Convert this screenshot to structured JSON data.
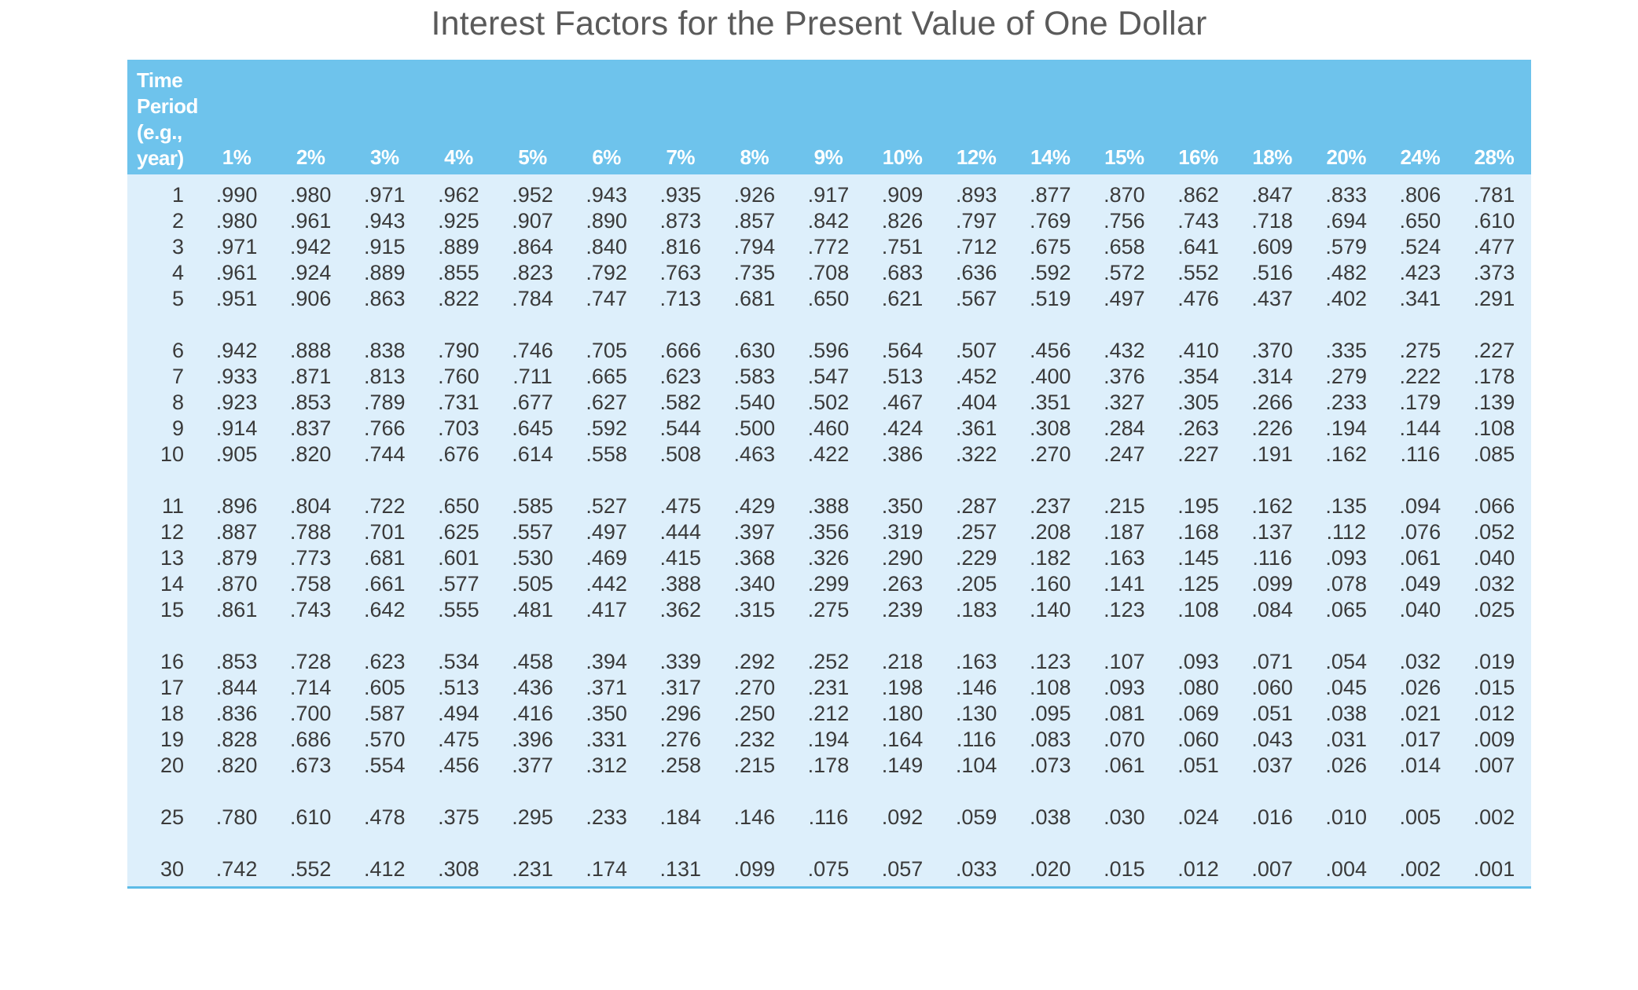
{
  "title": "Interest Factors for the Present Value of One Dollar",
  "table": {
    "period_header": [
      "Time",
      "Period",
      "(e.g.,",
      "year)"
    ],
    "rates": [
      "1%",
      "2%",
      "3%",
      "4%",
      "5%",
      "6%",
      "7%",
      "8%",
      "9%",
      "10%",
      "12%",
      "14%",
      "15%",
      "16%",
      "18%",
      "20%",
      "24%",
      "28%"
    ],
    "groups": [
      [
        {
          "period": "1",
          "values": [
            ".990",
            ".980",
            ".971",
            ".962",
            ".952",
            ".943",
            ".935",
            ".926",
            ".917",
            ".909",
            ".893",
            ".877",
            ".870",
            ".862",
            ".847",
            ".833",
            ".806",
            ".781"
          ]
        },
        {
          "period": "2",
          "values": [
            ".980",
            ".961",
            ".943",
            ".925",
            ".907",
            ".890",
            ".873",
            ".857",
            ".842",
            ".826",
            ".797",
            ".769",
            ".756",
            ".743",
            ".718",
            ".694",
            ".650",
            ".610"
          ]
        },
        {
          "period": "3",
          "values": [
            ".971",
            ".942",
            ".915",
            ".889",
            ".864",
            ".840",
            ".816",
            ".794",
            ".772",
            ".751",
            ".712",
            ".675",
            ".658",
            ".641",
            ".609",
            ".579",
            ".524",
            ".477"
          ]
        },
        {
          "period": "4",
          "values": [
            ".961",
            ".924",
            ".889",
            ".855",
            ".823",
            ".792",
            ".763",
            ".735",
            ".708",
            ".683",
            ".636",
            ".592",
            ".572",
            ".552",
            ".516",
            ".482",
            ".423",
            ".373"
          ]
        },
        {
          "period": "5",
          "values": [
            ".951",
            ".906",
            ".863",
            ".822",
            ".784",
            ".747",
            ".713",
            ".681",
            ".650",
            ".621",
            ".567",
            ".519",
            ".497",
            ".476",
            ".437",
            ".402",
            ".341",
            ".291"
          ]
        }
      ],
      [
        {
          "period": "6",
          "values": [
            ".942",
            ".888",
            ".838",
            ".790",
            ".746",
            ".705",
            ".666",
            ".630",
            ".596",
            ".564",
            ".507",
            ".456",
            ".432",
            ".410",
            ".370",
            ".335",
            ".275",
            ".227"
          ]
        },
        {
          "period": "7",
          "values": [
            ".933",
            ".871",
            ".813",
            ".760",
            ".711",
            ".665",
            ".623",
            ".583",
            ".547",
            ".513",
            ".452",
            ".400",
            ".376",
            ".354",
            ".314",
            ".279",
            ".222",
            ".178"
          ]
        },
        {
          "period": "8",
          "values": [
            ".923",
            ".853",
            ".789",
            ".731",
            ".677",
            ".627",
            ".582",
            ".540",
            ".502",
            ".467",
            ".404",
            ".351",
            ".327",
            ".305",
            ".266",
            ".233",
            ".179",
            ".139"
          ]
        },
        {
          "period": "9",
          "values": [
            ".914",
            ".837",
            ".766",
            ".703",
            ".645",
            ".592",
            ".544",
            ".500",
            ".460",
            ".424",
            ".361",
            ".308",
            ".284",
            ".263",
            ".226",
            ".194",
            ".144",
            ".108"
          ]
        },
        {
          "period": "10",
          "values": [
            ".905",
            ".820",
            ".744",
            ".676",
            ".614",
            ".558",
            ".508",
            ".463",
            ".422",
            ".386",
            ".322",
            ".270",
            ".247",
            ".227",
            ".191",
            ".162",
            ".116",
            ".085"
          ]
        }
      ],
      [
        {
          "period": "11",
          "values": [
            ".896",
            ".804",
            ".722",
            ".650",
            ".585",
            ".527",
            ".475",
            ".429",
            ".388",
            ".350",
            ".287",
            ".237",
            ".215",
            ".195",
            ".162",
            ".135",
            ".094",
            ".066"
          ]
        },
        {
          "period": "12",
          "values": [
            ".887",
            ".788",
            ".701",
            ".625",
            ".557",
            ".497",
            ".444",
            ".397",
            ".356",
            ".319",
            ".257",
            ".208",
            ".187",
            ".168",
            ".137",
            ".112",
            ".076",
            ".052"
          ]
        },
        {
          "period": "13",
          "values": [
            ".879",
            ".773",
            ".681",
            ".601",
            ".530",
            ".469",
            ".415",
            ".368",
            ".326",
            ".290",
            ".229",
            ".182",
            ".163",
            ".145",
            ".116",
            ".093",
            ".061",
            ".040"
          ]
        },
        {
          "period": "14",
          "values": [
            ".870",
            ".758",
            ".661",
            ".577",
            ".505",
            ".442",
            ".388",
            ".340",
            ".299",
            ".263",
            ".205",
            ".160",
            ".141",
            ".125",
            ".099",
            ".078",
            ".049",
            ".032"
          ]
        },
        {
          "period": "15",
          "values": [
            ".861",
            ".743",
            ".642",
            ".555",
            ".481",
            ".417",
            ".362",
            ".315",
            ".275",
            ".239",
            ".183",
            ".140",
            ".123",
            ".108",
            ".084",
            ".065",
            ".040",
            ".025"
          ]
        }
      ],
      [
        {
          "period": "16",
          "values": [
            ".853",
            ".728",
            ".623",
            ".534",
            ".458",
            ".394",
            ".339",
            ".292",
            ".252",
            ".218",
            ".163",
            ".123",
            ".107",
            ".093",
            ".071",
            ".054",
            ".032",
            ".019"
          ]
        },
        {
          "period": "17",
          "values": [
            ".844",
            ".714",
            ".605",
            ".513",
            ".436",
            ".371",
            ".317",
            ".270",
            ".231",
            ".198",
            ".146",
            ".108",
            ".093",
            ".080",
            ".060",
            ".045",
            ".026",
            ".015"
          ]
        },
        {
          "period": "18",
          "values": [
            ".836",
            ".700",
            ".587",
            ".494",
            ".416",
            ".350",
            ".296",
            ".250",
            ".212",
            ".180",
            ".130",
            ".095",
            ".081",
            ".069",
            ".051",
            ".038",
            ".021",
            ".012"
          ]
        },
        {
          "period": "19",
          "values": [
            ".828",
            ".686",
            ".570",
            ".475",
            ".396",
            ".331",
            ".276",
            ".232",
            ".194",
            ".164",
            ".116",
            ".083",
            ".070",
            ".060",
            ".043",
            ".031",
            ".017",
            ".009"
          ]
        },
        {
          "period": "20",
          "values": [
            ".820",
            ".673",
            ".554",
            ".456",
            ".377",
            ".312",
            ".258",
            ".215",
            ".178",
            ".149",
            ".104",
            ".073",
            ".061",
            ".051",
            ".037",
            ".026",
            ".014",
            ".007"
          ]
        }
      ],
      [
        {
          "period": "25",
          "values": [
            ".780",
            ".610",
            ".478",
            ".375",
            ".295",
            ".233",
            ".184",
            ".146",
            ".116",
            ".092",
            ".059",
            ".038",
            ".030",
            ".024",
            ".016",
            ".010",
            ".005",
            ".002"
          ]
        }
      ],
      [
        {
          "period": "30",
          "values": [
            ".742",
            ".552",
            ".412",
            ".308",
            ".231",
            ".174",
            ".131",
            ".099",
            ".075",
            ".057",
            ".033",
            ".020",
            ".015",
            ".012",
            ".007",
            ".004",
            ".002",
            ".001"
          ]
        }
      ]
    ]
  }
}
